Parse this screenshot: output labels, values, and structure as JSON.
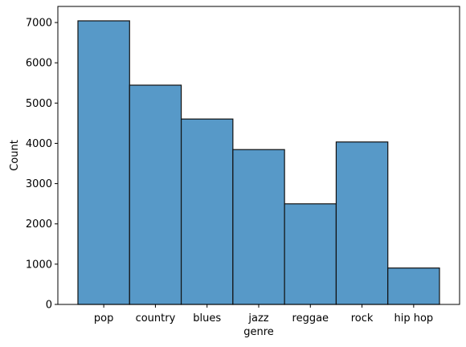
{
  "chart_data": {
    "type": "bar",
    "title": "",
    "xlabel": "genre",
    "ylabel": "Count",
    "categories": [
      "pop",
      "country",
      "blues",
      "jazz",
      "reggae",
      "rock",
      "hip hop"
    ],
    "values": [
      7042,
      5445,
      4604,
      3845,
      2498,
      4034,
      904
    ],
    "ylim": [
      0,
      7400
    ],
    "yticks": [
      0,
      1000,
      2000,
      3000,
      4000,
      5000,
      6000,
      7000
    ],
    "grid": false,
    "legend": "none",
    "colors": {
      "bar_fill": "#5799c8",
      "bar_edge": "#111111",
      "axes": "#000000"
    }
  }
}
